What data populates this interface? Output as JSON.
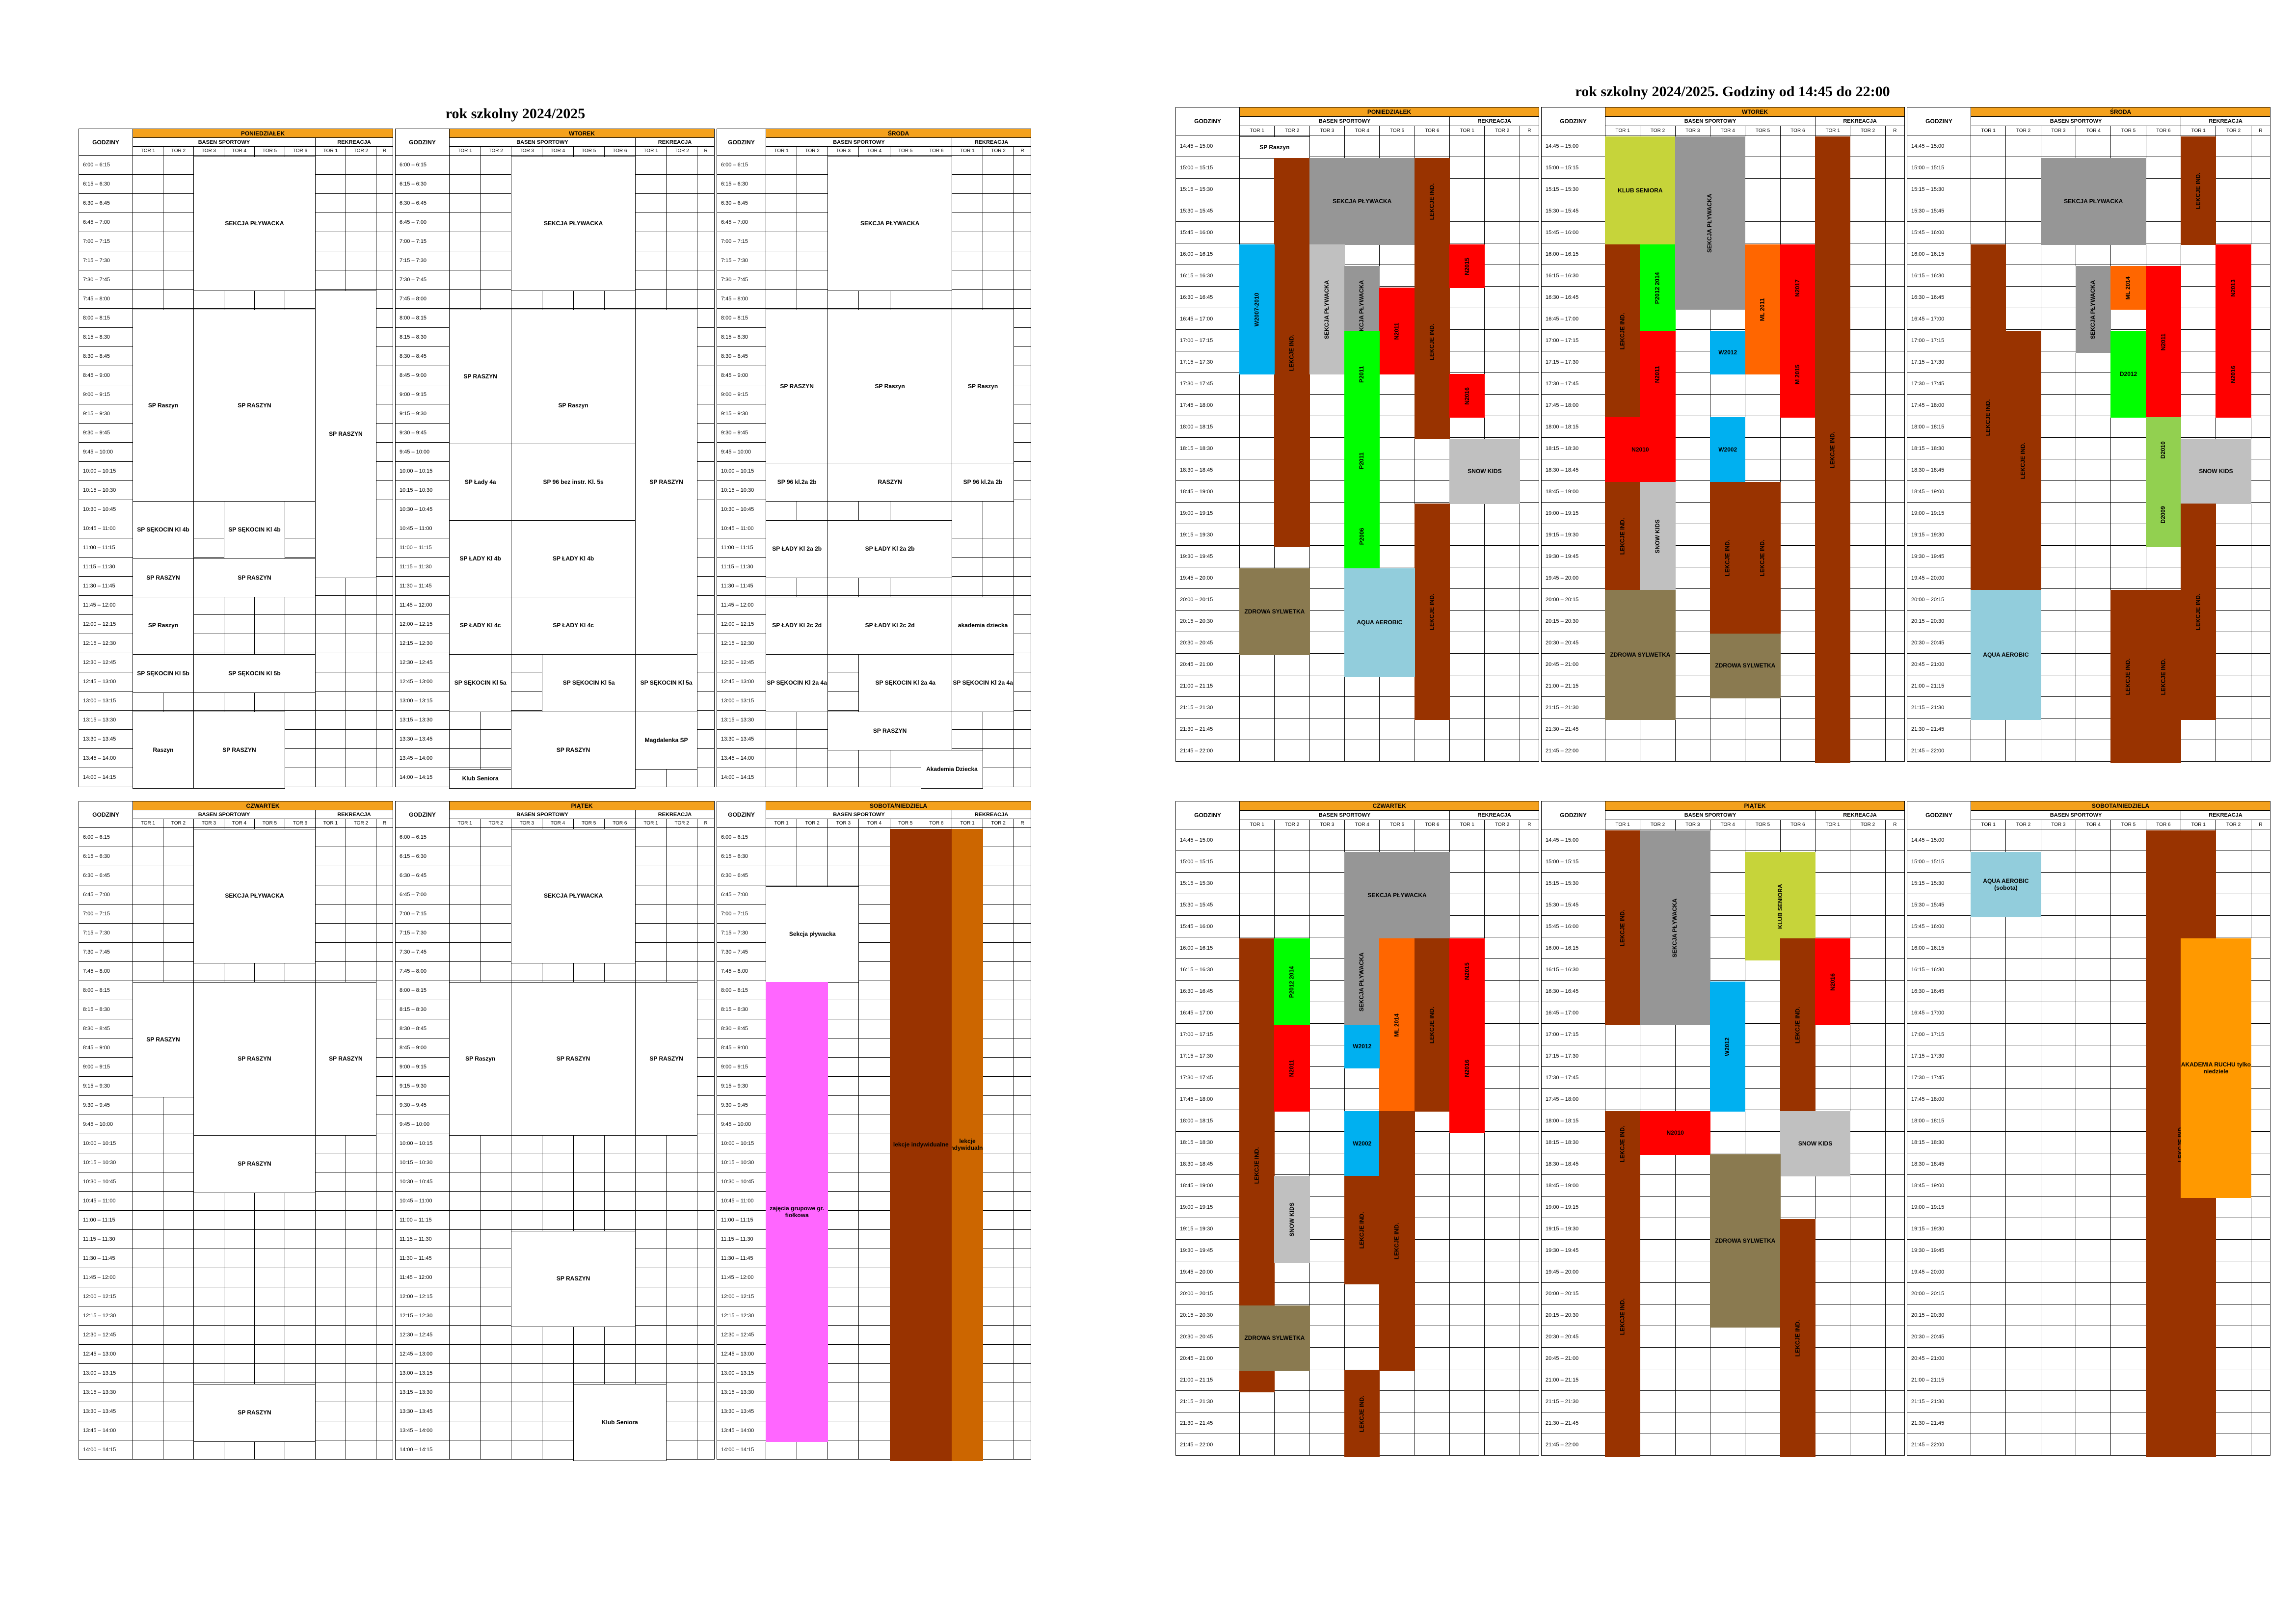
{
  "titles": {
    "left": "rok szkolny 2024/2025",
    "right": "rok szkolny 2024/2025. Godziny od 14:45 do 22:00"
  },
  "labels": {
    "godziny": "GODZINY",
    "basen": "BASEN SPORTOWY",
    "rekreacja": "REKREACJA",
    "tor": [
      "TOR 1",
      "TOR 2",
      "TOR 3",
      "TOR 4",
      "TOR 5",
      "TOR 6",
      "TOR 1",
      "TOR 2",
      "R"
    ]
  },
  "days": {
    "pon": "PONIEDZIAŁEK",
    "wt": "WTOREK",
    "sr": "ŚRODA",
    "czw": "CZWARTEK",
    "pt": "PIĄTEK",
    "sobnd": "SOBOTA/NIEDZIELA"
  },
  "morning_times": [
    "6:00 – 6:15",
    "6:15 – 6:30",
    "6:30 – 6:45",
    "6:45 – 7:00",
    "7:00 – 7:15",
    "7:15 – 7:30",
    "7:30 – 7:45",
    "7:45 – 8:00",
    "8:00 – 8:15",
    "8:15 – 8:30",
    "8:30 – 8:45",
    "8:45 – 9:00",
    "9:00 – 9:15",
    "9:15 – 9:30",
    "9:30 – 9:45",
    "9:45 – 10:00",
    "10:00 – 10:15",
    "10:15 – 10:30",
    "10:30 – 10:45",
    "10:45 – 11:00",
    "11:00 – 11:15",
    "11:15 – 11:30",
    "11:30 – 11:45",
    "11:45 – 12:00",
    "12:00 – 12:15",
    "12:15 – 12:30",
    "12:30 – 12:45",
    "12:45 – 13:00",
    "13:00 – 13:15",
    "13:15 – 13:30",
    "13:30 – 13:45",
    "13:45 – 14:00",
    "14:00 – 14:15"
  ],
  "evening_times": [
    "14:45 – 15:00",
    "15:00 – 15:15",
    "15:15 – 15:30",
    "15:30 – 15:45",
    "15:45 – 16:00",
    "16:00 – 16:15",
    "16:15 – 16:30",
    "16:30 – 16:45",
    "16:45 – 17:00",
    "17:00 – 17:15",
    "17:15 – 17:30",
    "17:30 – 17:45",
    "17:45 – 18:00",
    "18:00 – 18:15",
    "18:15 – 18:30",
    "18:30 – 18:45",
    "18:45 – 19:00",
    "19:00 – 19:15",
    "19:15 – 19:30",
    "19:30 – 19:45",
    "19:45 – 20:00",
    "20:00 – 20:15",
    "20:15 – 20:30",
    "20:30 – 20:45",
    "20:45 – 21:00",
    "21:00 – 21:15",
    "21:15 – 21:30",
    "21:30 – 21:45",
    "21:45 – 22:00"
  ],
  "blocks": {
    "sekcja": "SEKCJA PŁYWACKA",
    "sp_raszyn": "SP Raszyn",
    "sp_raszyn_up": "SP RASZYN",
    "sp_sekocin_4b": "SP SĘKOCIN Kl 4b",
    "sp_sekocin_5b": "SP SĘKOCIN Kl 5b",
    "raszyn": "Raszyn",
    "raszyn_up": "RASZYN",
    "sp_lady_4a": "SP Łady 4a",
    "sp96_bez": "SP 96 bez instr. Kl. 5s",
    "sp_lady_4b": "SP ŁADY Kl 4b",
    "sp_lady_4c": "SP ŁADY Kl 4c",
    "sp_sekocin_5a": "SP SĘKOCIN Kl 5a",
    "magdalenka": "Magdalenka SP",
    "klub_seniora": "Klub Seniora",
    "sp96_2a2b": "SP 96 kl.2a 2b",
    "sp_lady_2a2b": "SP ŁADY Kl 2a 2b",
    "sp_lady_2c2d": "SP ŁADY Kl 2c 2d",
    "akademia": "akademia dziecka",
    "sp_sekocin_2a4a": "SP SĘKOCIN Kl 2a 4a",
    "akademia2": "Akademia Dziecka",
    "sp_raszyn_am": "SP Raszyn",
    "lekcje": "LEKCJE IND.",
    "w2007": "W2007-2010",
    "n2011": "N2011",
    "p2011": "P2011",
    "p2006": "P2006",
    "n2015": "N2015",
    "n2016": "N2016",
    "snow": "SNOW KIDS",
    "zdrowa": "ZDROWA SYLWETKA",
    "aqua": "AQUA AEROBIC",
    "klub_sen_up": "KLUB SENIORA",
    "p2012": "P2012 2014",
    "w2012": "W2012",
    "ml2011": "ML 2011",
    "n2017": "N2017",
    "m2015": "M 2015",
    "n2010": "N2010",
    "w2002": "W2002",
    "ml2014": "ML 2014",
    "d2012": "D2012",
    "d2010": "D2010",
    "d2009": "D2009",
    "n2013": "N2013",
    "aqua_sob": "AQUA AEROBIC (sobota)",
    "akademia_ruchu": "AKADEMIA RUCHU tylko niedziele",
    "sek_plyw_small": "SEKCJA PŁYWACKA",
    "sekcja_lower": "Sekcja pływacka",
    "zajecia": "zajęcia grupowe gr. fiołkowa",
    "lekcje_ind_lower": "lekcje indywidualne"
  }
}
